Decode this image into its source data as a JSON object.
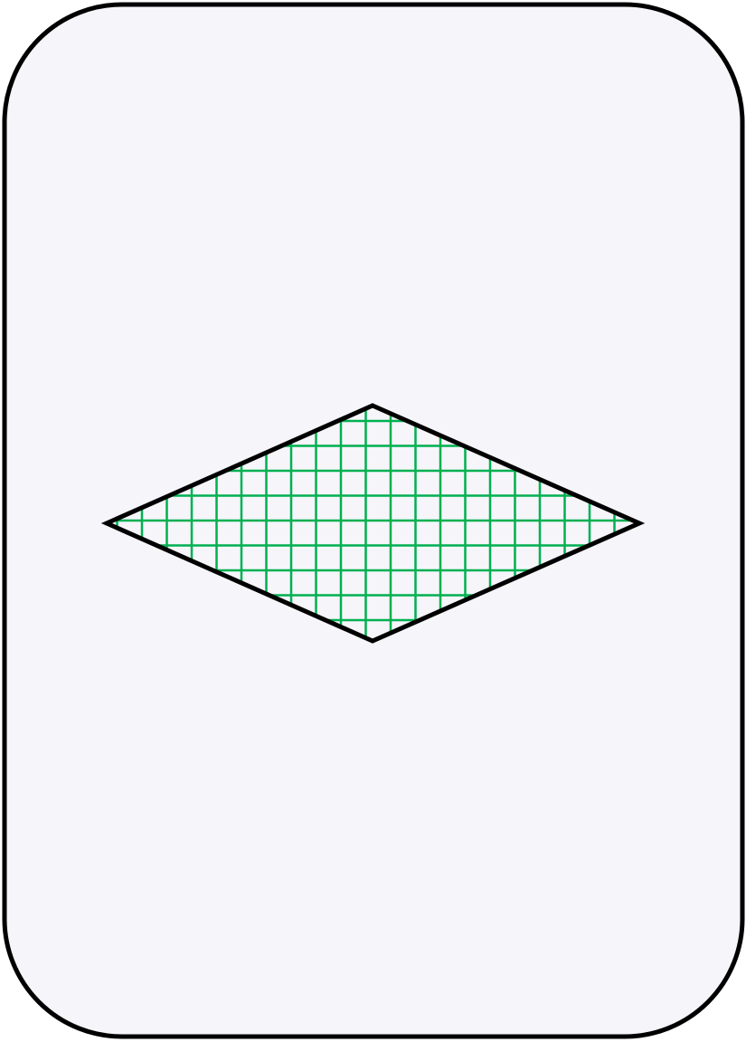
{
  "card": {
    "shapes": [
      {
        "color": "#00b050"
      }
    ]
  }
}
